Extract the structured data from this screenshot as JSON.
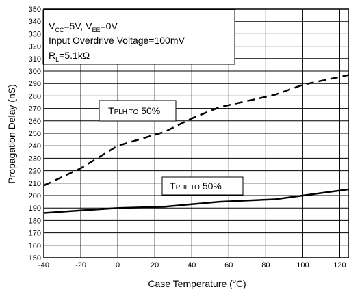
{
  "chart_data": {
    "type": "line",
    "xlabel_main": "Case Temperature (",
    "xlabel_unit_sup": "o",
    "xlabel_end": "C)",
    "ylabel": "Propagation Delay (nS)",
    "xlim": [
      -40,
      125
    ],
    "ylim": [
      150,
      350
    ],
    "x_ticks": [
      -40,
      -20,
      0,
      20,
      40,
      60,
      80,
      100,
      120
    ],
    "y_ticks": [
      150,
      160,
      170,
      180,
      190,
      200,
      210,
      220,
      230,
      240,
      250,
      260,
      270,
      280,
      290,
      300,
      310,
      320,
      330,
      340,
      350
    ],
    "grid": true,
    "series": [
      {
        "name": "TPLH to 50%",
        "label_main": "T",
        "label_sub": "PLH TO",
        "label_end": " 50%",
        "style": "dashed",
        "x": [
          -40,
          -20,
          0,
          25,
          40,
          55,
          85,
          100,
          125
        ],
        "y": [
          208,
          222,
          240,
          251,
          262,
          271,
          281,
          289,
          297
        ]
      },
      {
        "name": "TPHL to 50%",
        "label_main": "T",
        "label_sub": "PHL TO",
        "label_end": " 50%",
        "style": "solid",
        "x": [
          -40,
          -20,
          0,
          25,
          40,
          55,
          85,
          100,
          125
        ],
        "y": [
          186,
          188,
          190,
          191,
          193,
          195,
          197,
          200,
          205
        ]
      }
    ],
    "conditions": {
      "line1": {
        "v": "V",
        "cc": "CC",
        "a": "=5V, V",
        "ee": "EE",
        "b": "=0V"
      },
      "line2": "Input Overdrive Voltage=100mV",
      "line3": {
        "r": "R",
        "l": "L",
        "c": "=5.1kΩ"
      }
    },
    "colors": {
      "line": "#000000",
      "grid": "#000000",
      "background": "#ffffff"
    }
  }
}
